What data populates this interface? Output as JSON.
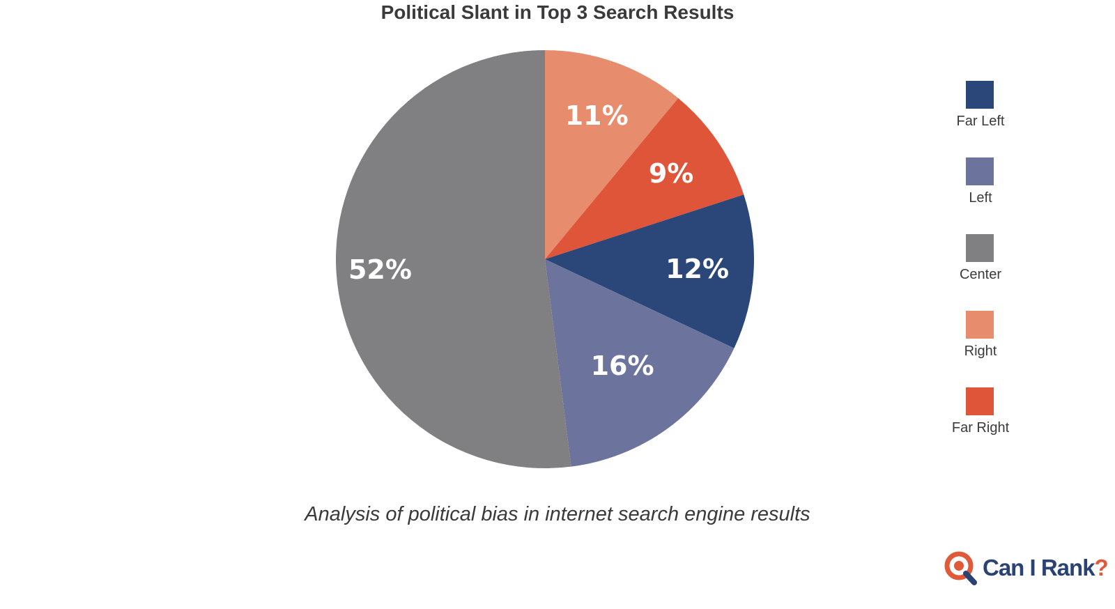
{
  "chart_data": {
    "type": "pie",
    "title": "Political Slant in Top 3 Search Results",
    "caption": "Analysis of political bias in internet search engine results",
    "legend_position": "right",
    "slices": [
      {
        "label": "Right",
        "value": 11,
        "display": "11%",
        "color": "#e88c6e"
      },
      {
        "label": "Far Right",
        "value": 9,
        "display": "9%",
        "color": "#df553a"
      },
      {
        "label": "Far Left",
        "value": 12,
        "display": "12%",
        "color": "#2b4679"
      },
      {
        "label": "Left",
        "value": 16,
        "display": "16%",
        "color": "#6c739d"
      },
      {
        "label": "Center",
        "value": 52,
        "display": "52%",
        "color": "#808083"
      }
    ],
    "legend": [
      {
        "label": "Far Left",
        "color": "#2b4679"
      },
      {
        "label": "Left",
        "color": "#6c739d"
      },
      {
        "label": "Center",
        "color": "#808083"
      },
      {
        "label": "Right",
        "color": "#e88c6e"
      },
      {
        "label": "Far Right",
        "color": "#df553a"
      }
    ]
  },
  "logo": {
    "text": "Can I Rank",
    "mark": "?",
    "icon": "magnifier-q-icon"
  }
}
